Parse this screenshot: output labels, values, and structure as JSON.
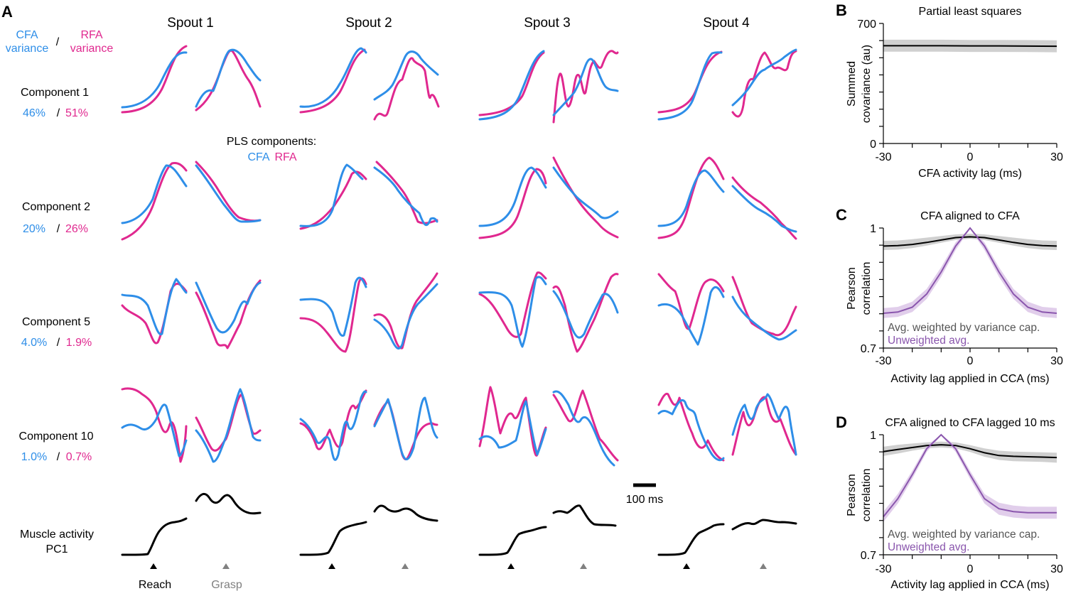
{
  "panel_a": {
    "letter": "A",
    "spouts": [
      "Spout 1",
      "Spout 2",
      "Spout 3",
      "Spout 4"
    ],
    "legend_cfa": [
      "CFA",
      "variance"
    ],
    "legend_sep": "/",
    "legend_rfa": [
      "RFA",
      "variance"
    ],
    "rows": [
      {
        "name": "Component 1",
        "cfa": "46%",
        "rfa": "51%"
      },
      {
        "name": "Component 2",
        "cfa": "20%",
        "rfa": "26%"
      },
      {
        "name": "Component 5",
        "cfa": "4.0%",
        "rfa": "1.9%"
      },
      {
        "name": "Component 10",
        "cfa": "1.0%",
        "rfa": "0.7%"
      }
    ],
    "pls_label": "PLS components:",
    "pls_cfa": "CFA",
    "pls_rfa": "RFA",
    "muscle_label": [
      "Muscle activity",
      "PC1"
    ],
    "scale_label": "100 ms",
    "reach_label": "Reach",
    "grasp_label": "Grasp",
    "colors": {
      "cfa": "#2e8ee8",
      "rfa": "#e0288f",
      "muscle": "#000000",
      "reach_marker": "#000000",
      "grasp_marker": "#808080"
    }
  },
  "chart_data": [
    {
      "id": "B",
      "type": "line",
      "letter": "B",
      "title": "Partial least squares",
      "xlabel": "CFA activity lag (ms)",
      "ylabel": [
        "Summed",
        "covariance (au)"
      ],
      "xlim": [
        -30,
        30
      ],
      "ylim": [
        0,
        700
      ],
      "xticks": [
        "-30",
        "0",
        "30"
      ],
      "yticks": [
        "0",
        "700"
      ],
      "series": [
        {
          "color": "#000000",
          "band": "#c8c8c8",
          "x": [
            -30,
            -20,
            -10,
            0,
            10,
            20,
            30
          ],
          "y": [
            570,
            570,
            570,
            569,
            569,
            568,
            567
          ],
          "lo": [
            535,
            535,
            535,
            534,
            534,
            533,
            532
          ],
          "hi": [
            605,
            605,
            605,
            604,
            604,
            603,
            602
          ]
        }
      ]
    },
    {
      "id": "C",
      "type": "line",
      "letter": "C",
      "title": "CFA aligned to CFA",
      "xlabel": "Activity lag applied in CCA (ms)",
      "ylabel": [
        "Pearson",
        "correlation"
      ],
      "xlim": [
        -30,
        30
      ],
      "ylim": [
        0.7,
        1
      ],
      "xticks": [
        "-30",
        "0",
        "30"
      ],
      "yticks": [
        "0.7",
        "1"
      ],
      "legend": [
        "Avg. weighted by variance cap.",
        "Unweighted avg."
      ],
      "series": [
        {
          "color": "#000000",
          "band": "#c8c8c8",
          "x": [
            -30,
            -25,
            -20,
            -15,
            -10,
            -5,
            0,
            5,
            10,
            15,
            20,
            25,
            30
          ],
          "y": [
            0.955,
            0.956,
            0.959,
            0.964,
            0.97,
            0.976,
            0.978,
            0.976,
            0.97,
            0.964,
            0.959,
            0.956,
            0.955
          ],
          "lo": [
            0.945,
            0.946,
            0.95,
            0.956,
            0.963,
            0.97,
            0.973,
            0.97,
            0.963,
            0.956,
            0.95,
            0.946,
            0.945
          ],
          "hi": [
            0.968,
            0.969,
            0.972,
            0.976,
            0.98,
            0.984,
            0.986,
            0.984,
            0.98,
            0.976,
            0.972,
            0.969,
            0.968
          ]
        },
        {
          "color": "#8a56ad",
          "band": "#dcc6e8",
          "x": [
            -30,
            -25,
            -20,
            -15,
            -10,
            -5,
            0,
            5,
            10,
            15,
            20,
            25,
            30
          ],
          "y": [
            0.787,
            0.79,
            0.802,
            0.835,
            0.89,
            0.955,
            1.0,
            0.955,
            0.89,
            0.835,
            0.802,
            0.79,
            0.787
          ],
          "lo": [
            0.775,
            0.778,
            0.79,
            0.823,
            0.878,
            0.945,
            0.998,
            0.945,
            0.878,
            0.823,
            0.79,
            0.778,
            0.775
          ],
          "hi": [
            0.8,
            0.803,
            0.816,
            0.848,
            0.902,
            0.964,
            1.0,
            0.964,
            0.902,
            0.848,
            0.816,
            0.803,
            0.8
          ]
        }
      ]
    },
    {
      "id": "D",
      "type": "line",
      "letter": "D",
      "title": "CFA aligned to CFA lagged 10 ms",
      "xlabel": "Activity lag applied in CCA (ms)",
      "ylabel": [
        "Pearson",
        "correlation"
      ],
      "xlim": [
        -30,
        30
      ],
      "ylim": [
        0.7,
        1
      ],
      "xticks": [
        "-30",
        "0",
        "30"
      ],
      "yticks": [
        "0.7",
        "1"
      ],
      "legend": [
        "Avg. weighted by variance cap.",
        "Unweighted avg."
      ],
      "series": [
        {
          "color": "#000000",
          "band": "#c8c8c8",
          "x": [
            -30,
            -25,
            -20,
            -15,
            -10,
            -5,
            0,
            5,
            10,
            15,
            20,
            25,
            30
          ],
          "y": [
            0.958,
            0.963,
            0.968,
            0.973,
            0.975,
            0.973,
            0.965,
            0.955,
            0.948,
            0.946,
            0.945,
            0.944,
            0.943
          ],
          "lo": [
            0.947,
            0.953,
            0.96,
            0.966,
            0.968,
            0.966,
            0.957,
            0.945,
            0.937,
            0.934,
            0.933,
            0.932,
            0.93
          ],
          "hi": [
            0.97,
            0.975,
            0.978,
            0.981,
            0.983,
            0.981,
            0.974,
            0.966,
            0.96,
            0.958,
            0.957,
            0.956,
            0.955
          ]
        },
        {
          "color": "#8a56ad",
          "band": "#dcc6e8",
          "x": [
            -30,
            -25,
            -20,
            -15,
            -10,
            -5,
            0,
            5,
            10,
            15,
            20,
            25,
            30
          ],
          "y": [
            0.795,
            0.84,
            0.9,
            0.965,
            1.0,
            0.965,
            0.9,
            0.84,
            0.815,
            0.808,
            0.805,
            0.805,
            0.805
          ],
          "lo": [
            0.782,
            0.828,
            0.89,
            0.957,
            0.998,
            0.957,
            0.89,
            0.828,
            0.8,
            0.793,
            0.79,
            0.79,
            0.79
          ],
          "hi": [
            0.808,
            0.852,
            0.91,
            0.973,
            1.0,
            0.973,
            0.91,
            0.852,
            0.83,
            0.823,
            0.82,
            0.82,
            0.82
          ]
        }
      ]
    }
  ]
}
